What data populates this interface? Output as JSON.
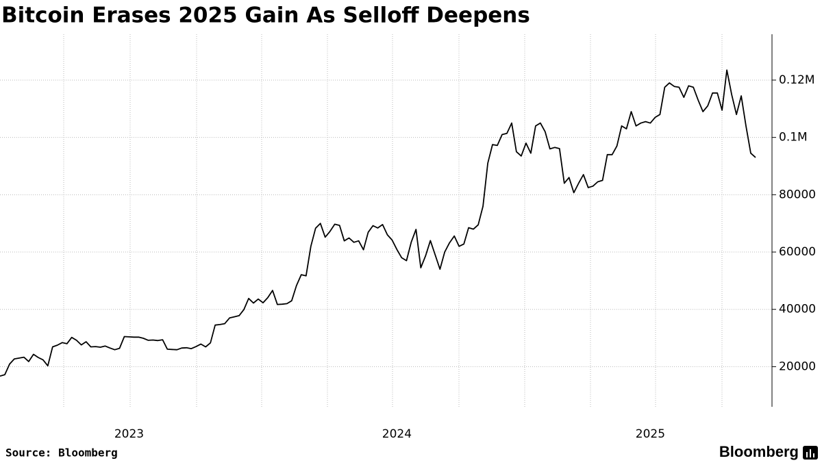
{
  "chart_data": {
    "type": "line",
    "title": "Bitcoin Erases 2025 Gain As Selloff Deepens",
    "source": "Source: Bloomberg",
    "logo": "Bloomberg",
    "color": "#000000",
    "categories": [
      null,
      null,
      null,
      null,
      null,
      null,
      null,
      null,
      null,
      null,
      null,
      null,
      null,
      null,
      null,
      null,
      null,
      null,
      null,
      null,
      null,
      null,
      null,
      null,
      null,
      null,
      null,
      "2023",
      null,
      null,
      null,
      null,
      null,
      null,
      null,
      null,
      null,
      null,
      null,
      null,
      null,
      null,
      null,
      null,
      null,
      null,
      null,
      null,
      null,
      null,
      null,
      null,
      null,
      null,
      null,
      null,
      null,
      null,
      null,
      null,
      null,
      null,
      null,
      null,
      null,
      null,
      null,
      null,
      null,
      null,
      null,
      null,
      null,
      null,
      null,
      null,
      null,
      null,
      null,
      null,
      null,
      null,
      null,
      "2024",
      null,
      null,
      null,
      null,
      null,
      null,
      null,
      null,
      null,
      null,
      null,
      null,
      null,
      null,
      null,
      null,
      null,
      null,
      null,
      null,
      null,
      null,
      null,
      null,
      null,
      null,
      null,
      null,
      null,
      null,
      null,
      null,
      null,
      null,
      null,
      null,
      null,
      null,
      null,
      null,
      null,
      null,
      null,
      null,
      null,
      null,
      null,
      null,
      null,
      null,
      null,
      null,
      "2025",
      null,
      null,
      null,
      null,
      null,
      null,
      null,
      null,
      null,
      null,
      null,
      null,
      null,
      null,
      null,
      null,
      null,
      null,
      null,
      null,
      null,
      null
    ],
    "values": [
      16700,
      17200,
      20900,
      22700,
      23000,
      23300,
      21800,
      24300,
      23200,
      22400,
      20300,
      26900,
      27500,
      28400,
      28000,
      30200,
      29200,
      27600,
      28700,
      26900,
      27000,
      26800,
      27200,
      26500,
      25900,
      26400,
      30500,
      30400,
      30300,
      30300,
      29900,
      29200,
      29300,
      29100,
      29400,
      26100,
      26000,
      25900,
      26500,
      26600,
      26300,
      27000,
      27900,
      26900,
      28300,
      34500,
      34700,
      35000,
      37000,
      37400,
      37800,
      39900,
      43800,
      42200,
      43600,
      42300,
      44100,
      46600,
      41700,
      41800,
      42000,
      43000,
      48300,
      52100,
      51700,
      62000,
      68300,
      70000,
      65200,
      67200,
      69700,
      69300,
      63900,
      64900,
      63400,
      63900,
      60800,
      66900,
      69200,
      68400,
      69600,
      66000,
      64200,
      60900,
      58000,
      57000,
      63500,
      67900,
      54500,
      58700,
      64000,
      59000,
      54000,
      60000,
      63200,
      65600,
      62000,
      62800,
      68500,
      68000,
      69500,
      76000,
      91000,
      97500,
      97200,
      101000,
      101400,
      105000,
      95000,
      93500,
      98000,
      94500,
      104000,
      105000,
      102000,
      96000,
      96500,
      96100,
      84000,
      86000,
      80700,
      84000,
      87000,
      82500,
      83000,
      84500,
      85000,
      94000,
      94000,
      97000,
      104000,
      103000,
      109000,
      104000,
      105000,
      105500,
      105000,
      107000,
      108000,
      117500,
      119000,
      117800,
      117500,
      114000,
      118000,
      117500,
      113000,
      109000,
      111000,
      115500,
      115500,
      109500,
      123500,
      115000,
      108000,
      114500,
      104000,
      94500,
      93000
    ],
    "ylim": [
      6000,
      136000
    ],
    "yticks": [
      20000,
      40000,
      60000,
      80000,
      {
        "value": 100000,
        "label": "0.1M"
      },
      {
        "value": 120000,
        "label": "0.12M"
      }
    ],
    "grid": true
  }
}
